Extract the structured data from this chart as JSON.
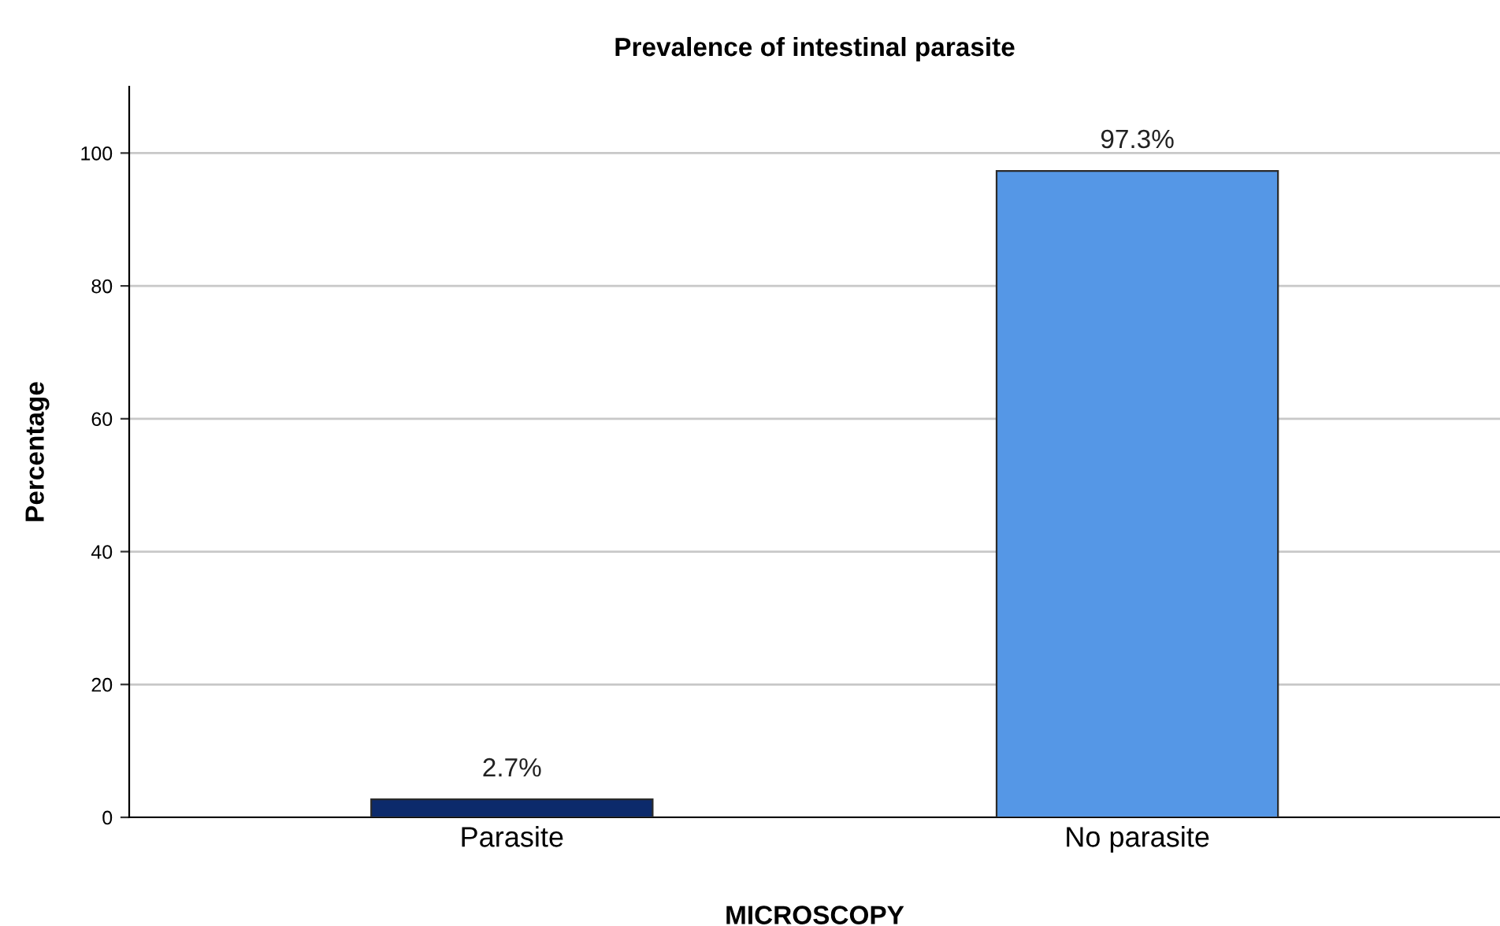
{
  "chart_data": {
    "type": "bar",
    "title": "Prevalence of intestinal parasite",
    "xlabel": "MICROSCOPY",
    "ylabel": "Percentage",
    "categories": [
      "Parasite",
      "No parasite"
    ],
    "values": [
      2.7,
      97.3
    ],
    "colors": [
      "#0c2a6b",
      "#5597e6"
    ],
    "value_labels": [
      "2.7%",
      "97.3%"
    ],
    "ylim": [
      0,
      110
    ],
    "yticks": [
      0,
      20,
      40,
      60,
      80,
      100
    ],
    "grid": "y"
  }
}
